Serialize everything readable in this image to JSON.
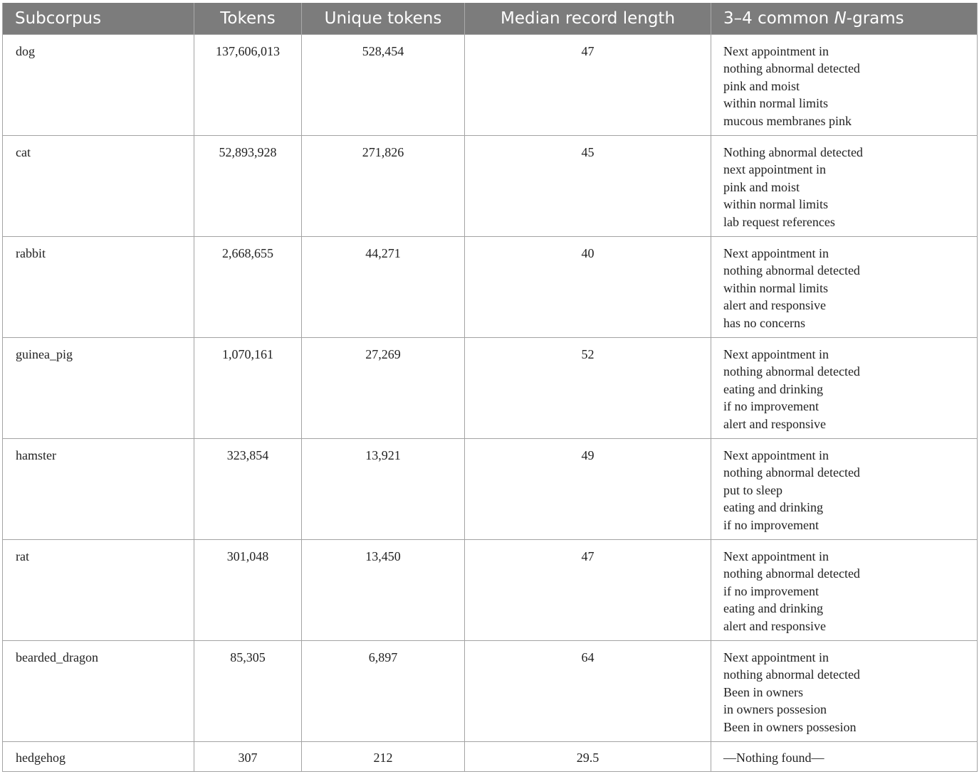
{
  "headers": {
    "subcorpus": "Subcorpus",
    "tokens": "Tokens",
    "unique_tokens": "Unique tokens",
    "median_record_length": "Median record length",
    "ngrams_prefix": "3–4 common ",
    "ngrams_italic": "N",
    "ngrams_suffix": "-grams"
  },
  "rows": [
    {
      "subcorpus": "dog",
      "tokens": "137,606,013",
      "unique_tokens": "528,454",
      "median": "47",
      "ngrams": [
        "Next appointment in",
        "nothing abnormal detected",
        "pink and moist",
        "within normal limits",
        "mucous membranes pink"
      ]
    },
    {
      "subcorpus": "cat",
      "tokens": "52,893,928",
      "unique_tokens": "271,826",
      "median": "45",
      "ngrams": [
        "Nothing abnormal detected",
        "next appointment in",
        "pink and moist",
        "within normal limits",
        "lab request references"
      ]
    },
    {
      "subcorpus": "rabbit",
      "tokens": "2,668,655",
      "unique_tokens": "44,271",
      "median": "40",
      "ngrams": [
        "Next appointment in",
        "nothing abnormal detected",
        "within normal limits",
        "alert and responsive",
        "has no concerns"
      ]
    },
    {
      "subcorpus": "guinea_pig",
      "tokens": "1,070,161",
      "unique_tokens": "27,269",
      "median": "52",
      "ngrams": [
        "Next appointment in",
        "nothing abnormal detected",
        "eating and drinking",
        "if no improvement",
        "alert and responsive"
      ]
    },
    {
      "subcorpus": "hamster",
      "tokens": "323,854",
      "unique_tokens": "13,921",
      "median": "49",
      "ngrams": [
        "Next appointment in",
        "nothing abnormal detected",
        "put to sleep",
        "eating and drinking",
        "if no improvement"
      ]
    },
    {
      "subcorpus": "rat",
      "tokens": "301,048",
      "unique_tokens": "13,450",
      "median": "47",
      "ngrams": [
        "Next appointment in",
        "nothing abnormal detected",
        "if no improvement",
        "eating and drinking",
        "alert and responsive"
      ]
    },
    {
      "subcorpus": "bearded_dragon",
      "tokens": "85,305",
      "unique_tokens": "6,897",
      "median": "64",
      "ngrams": [
        "Next appointment in",
        "nothing abnormal detected",
        "Been in owners",
        "in owners possesion",
        "Been in owners possesion"
      ]
    },
    {
      "subcorpus": "hedgehog",
      "tokens": "307",
      "unique_tokens": "212",
      "median": "29.5",
      "ngrams": [
        "—Nothing found—"
      ]
    }
  ]
}
